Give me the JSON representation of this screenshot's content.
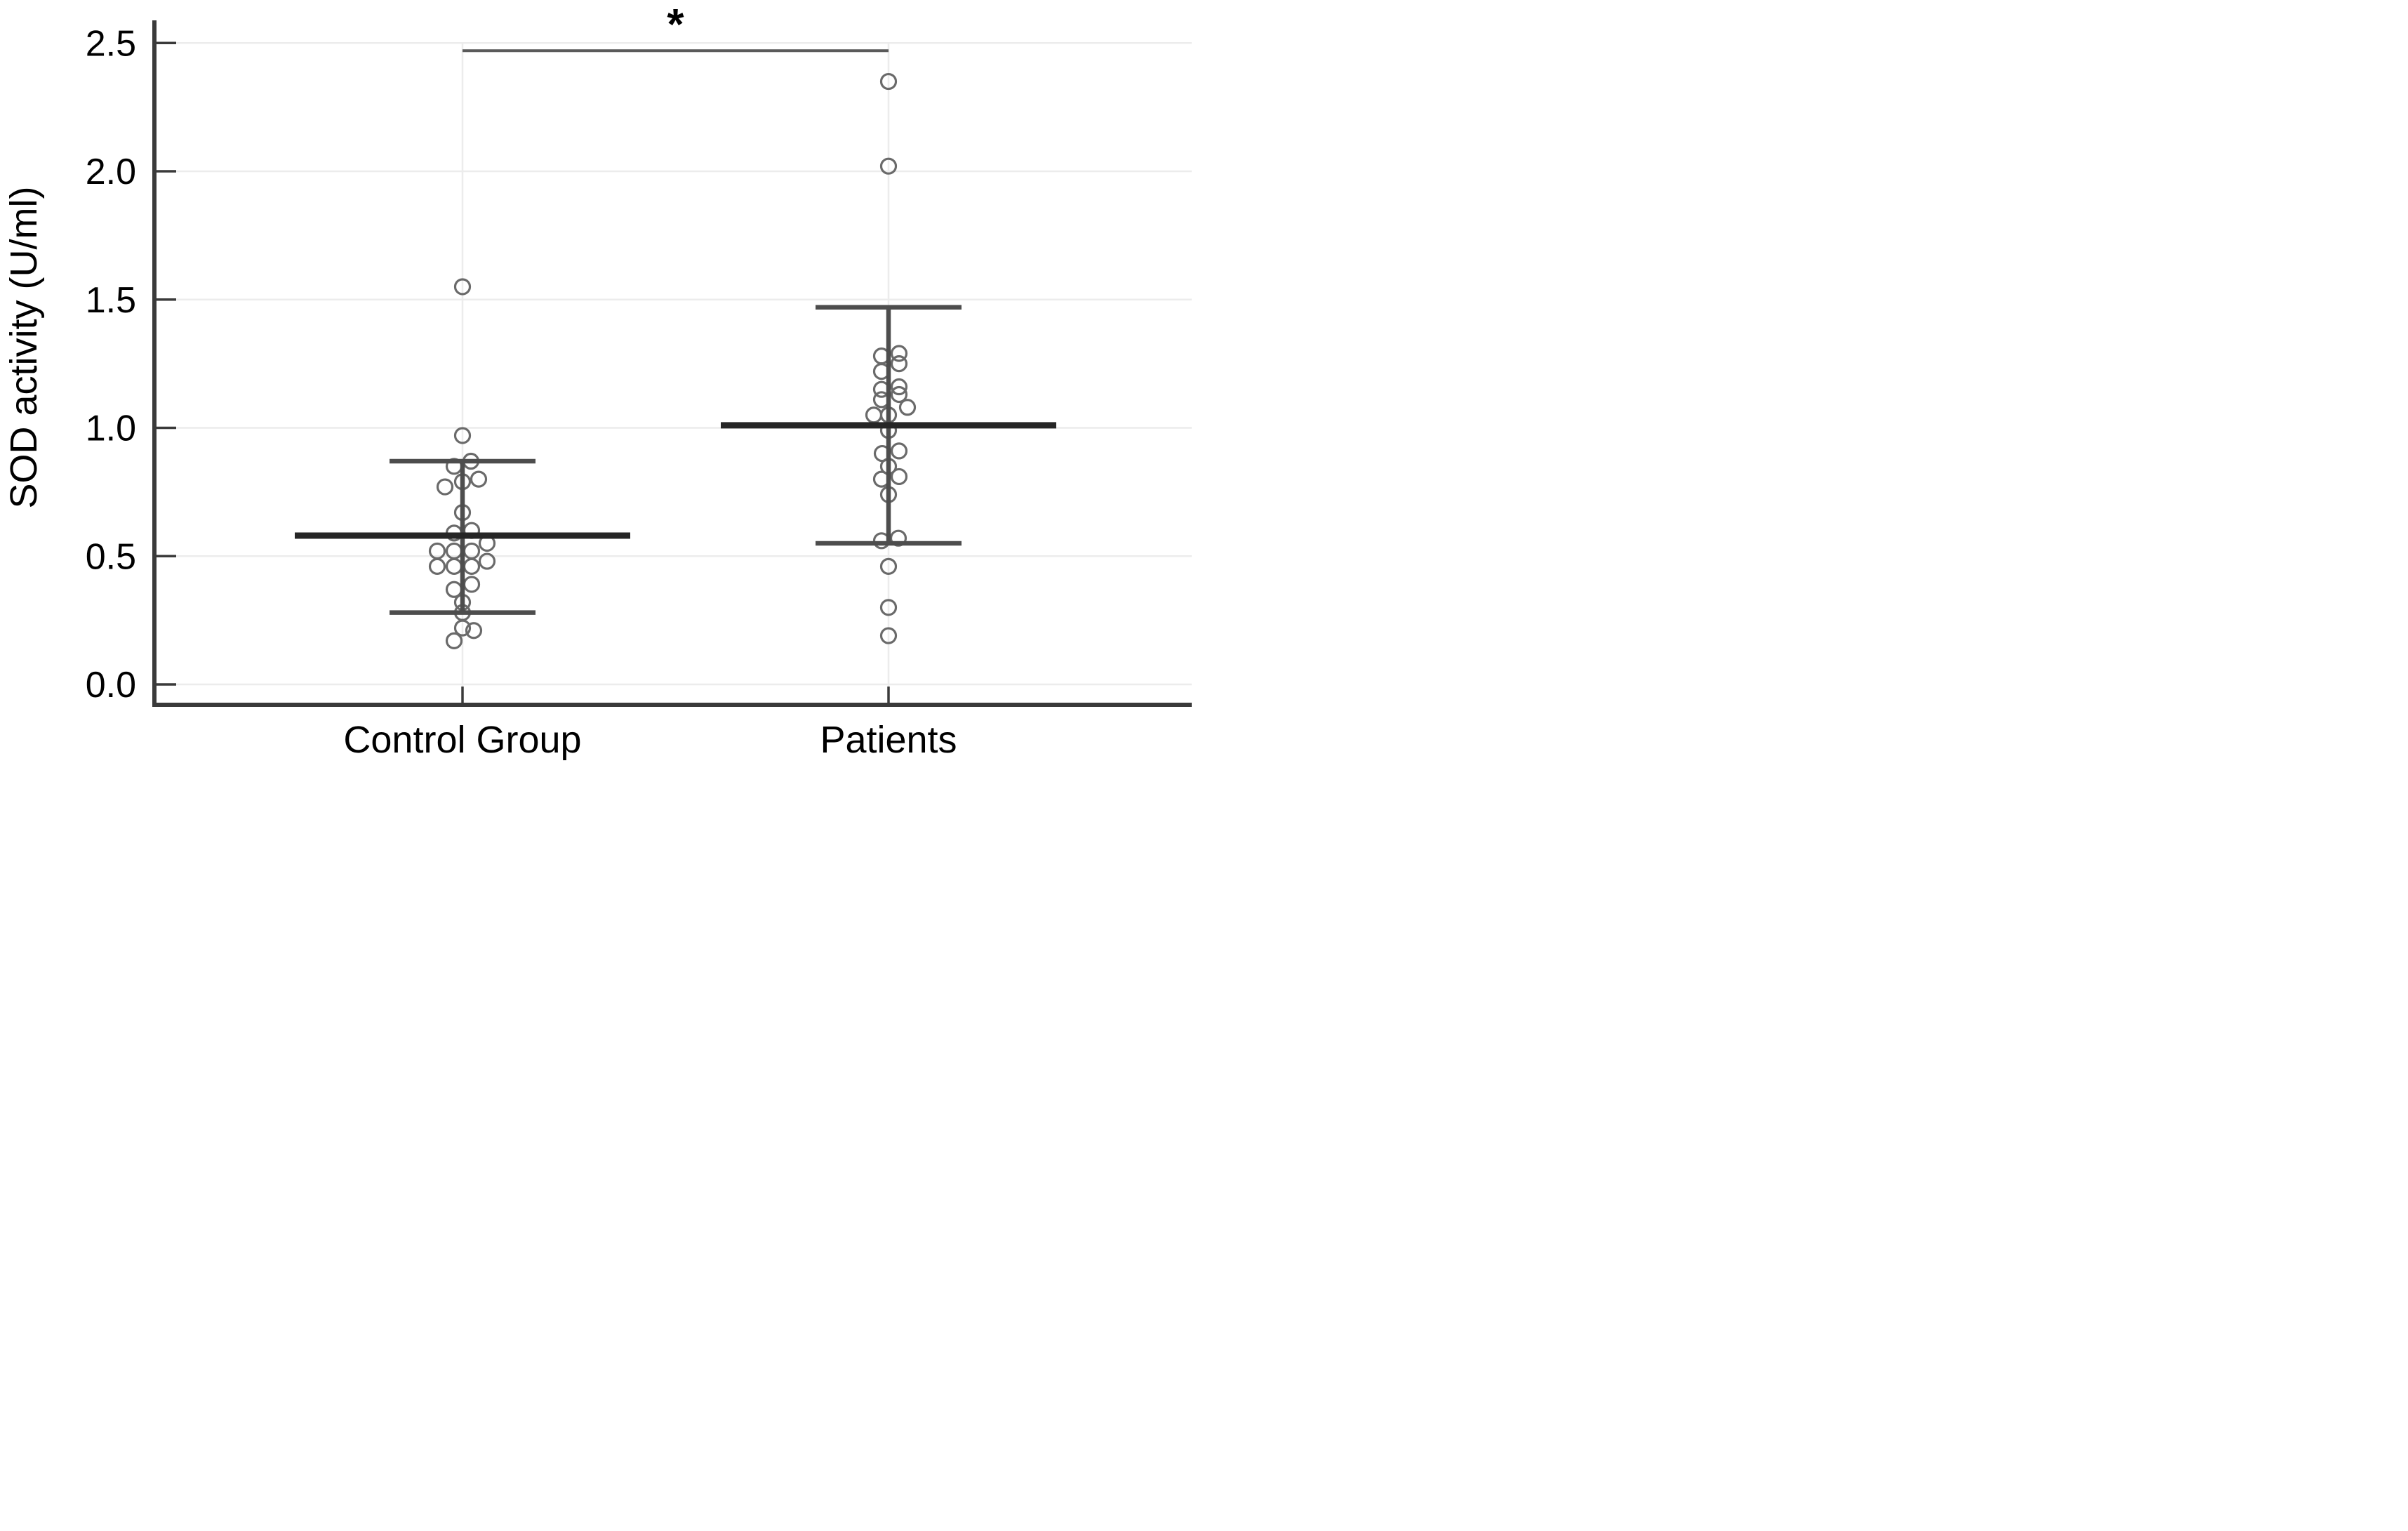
{
  "figure": {
    "background": "#ffffff"
  },
  "chart_data": {
    "type": "scatter",
    "title": "",
    "xlabel": "",
    "ylabel": "SOD activity (U/ml)",
    "categories": [
      "Control Group",
      "Patients"
    ],
    "y_ticks": [
      "0.0",
      "0.5",
      "1.0",
      "1.5",
      "2.0",
      "2.5"
    ],
    "y_tick_values": [
      0.0,
      0.5,
      1.0,
      1.5,
      2.0,
      2.5
    ],
    "ylim": [
      0,
      2.59
    ],
    "grid": true,
    "legend": false,
    "marker": "open-circle",
    "series": [
      {
        "name": "Control Group",
        "mean": 0.58,
        "err_high": 0.87,
        "err_low": 0.28,
        "points": [
          {
            "v": 1.55,
            "dx": 0
          },
          {
            "v": 0.97,
            "dx": 0
          },
          {
            "v": 0.87,
            "dx": 12
          },
          {
            "v": 0.85,
            "dx": -12
          },
          {
            "v": 0.8,
            "dx": 23
          },
          {
            "v": 0.79,
            "dx": 0
          },
          {
            "v": 0.77,
            "dx": -25
          },
          {
            "v": 0.67,
            "dx": 0
          },
          {
            "v": 0.6,
            "dx": 13
          },
          {
            "v": 0.59,
            "dx": -12
          },
          {
            "v": 0.55,
            "dx": 35
          },
          {
            "v": 0.52,
            "dx": -36
          },
          {
            "v": 0.52,
            "dx": -12
          },
          {
            "v": 0.52,
            "dx": 13
          },
          {
            "v": 0.48,
            "dx": 35
          },
          {
            "v": 0.46,
            "dx": -36
          },
          {
            "v": 0.46,
            "dx": -12
          },
          {
            "v": 0.46,
            "dx": 13
          },
          {
            "v": 0.39,
            "dx": 13
          },
          {
            "v": 0.37,
            "dx": -12
          },
          {
            "v": 0.32,
            "dx": 0
          },
          {
            "v": 0.28,
            "dx": 0
          },
          {
            "v": 0.22,
            "dx": 0
          },
          {
            "v": 0.21,
            "dx": 16
          },
          {
            "v": 0.17,
            "dx": -12
          }
        ]
      },
      {
        "name": "Patients",
        "mean": 1.01,
        "err_high": 1.47,
        "err_low": 0.55,
        "points": [
          {
            "v": 2.35,
            "dx": 0
          },
          {
            "v": 2.02,
            "dx": 0
          },
          {
            "v": 1.29,
            "dx": 15
          },
          {
            "v": 1.28,
            "dx": -10
          },
          {
            "v": 1.25,
            "dx": 15
          },
          {
            "v": 1.22,
            "dx": -10
          },
          {
            "v": 1.16,
            "dx": 15
          },
          {
            "v": 1.15,
            "dx": -10
          },
          {
            "v": 1.13,
            "dx": 15
          },
          {
            "v": 1.11,
            "dx": -10
          },
          {
            "v": 1.08,
            "dx": 27
          },
          {
            "v": 1.05,
            "dx": -21
          },
          {
            "v": 1.05,
            "dx": 0
          },
          {
            "v": 0.99,
            "dx": 0
          },
          {
            "v": 0.91,
            "dx": 15
          },
          {
            "v": 0.9,
            "dx": -9
          },
          {
            "v": 0.85,
            "dx": 0
          },
          {
            "v": 0.81,
            "dx": 15
          },
          {
            "v": 0.8,
            "dx": -10
          },
          {
            "v": 0.74,
            "dx": 0
          },
          {
            "v": 0.57,
            "dx": 14
          },
          {
            "v": 0.56,
            "dx": -10
          },
          {
            "v": 0.46,
            "dx": 0
          },
          {
            "v": 0.3,
            "dx": 0
          },
          {
            "v": 0.19,
            "dx": 0
          }
        ]
      }
    ],
    "significance": {
      "label": "*",
      "bar_y": 2.47,
      "from": "Control Group",
      "to": "Patients"
    },
    "colors": {
      "axis": "#3a3a3a",
      "grid": "#ececec",
      "error_bar": "#4d4d4d",
      "mean_line": "#262626",
      "marker": "#6a6a6a",
      "bracket": "#5a5a5a",
      "text": "#000000"
    }
  }
}
